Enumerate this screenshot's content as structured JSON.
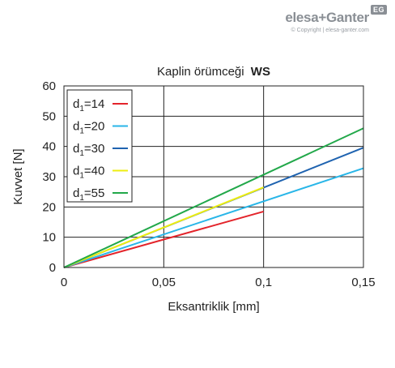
{
  "logo": {
    "brand": "elesa+Ganter",
    "badge": "EG",
    "copyright": "© Copyright | elesa-ganter.com"
  },
  "chart_data": {
    "type": "line",
    "title": "Kaplin örümceği",
    "title_bold": "WS",
    "xlabel": "Eksantriklik [mm]",
    "ylabel": "Kuvvet [N]",
    "xlim": [
      0,
      0.15
    ],
    "ylim": [
      0,
      60
    ],
    "x_ticks": [
      0,
      0.05,
      0.1,
      0.15
    ],
    "x_tick_labels": [
      "0",
      "0,05",
      "0,1",
      "0,15"
    ],
    "y_ticks": [
      0,
      10,
      20,
      30,
      40,
      50,
      60
    ],
    "y_tick_labels": [
      "0",
      "10",
      "20",
      "30",
      "40",
      "50",
      "60"
    ],
    "grid": true,
    "legend_position": "top-left",
    "series": [
      {
        "name": "d1=14",
        "label_main": "d",
        "label_sub": "1",
        "label_rest": "=14",
        "color": "#e3242b",
        "x": [
          0,
          0.1
        ],
        "y": [
          0,
          18.5
        ]
      },
      {
        "name": "d1=20",
        "label_main": "d",
        "label_sub": "1",
        "label_rest": "=20",
        "color": "#29b6e8",
        "x": [
          0,
          0.15
        ],
        "y": [
          0,
          32.8
        ]
      },
      {
        "name": "d1=30",
        "label_main": "d",
        "label_sub": "1",
        "label_rest": "=30",
        "color": "#1f63b0",
        "x": [
          0,
          0.15
        ],
        "y": [
          0,
          39.6
        ]
      },
      {
        "name": "d1=40",
        "label_main": "d",
        "label_sub": "1",
        "label_rest": "=40",
        "color": "#eeee10",
        "x": [
          0,
          0.1
        ],
        "y": [
          0,
          26.5
        ]
      },
      {
        "name": "d1=55",
        "label_main": "d",
        "label_sub": "1",
        "label_rest": "=55",
        "color": "#22a84a",
        "x": [
          0,
          0.15
        ],
        "y": [
          0,
          46
        ]
      }
    ]
  }
}
